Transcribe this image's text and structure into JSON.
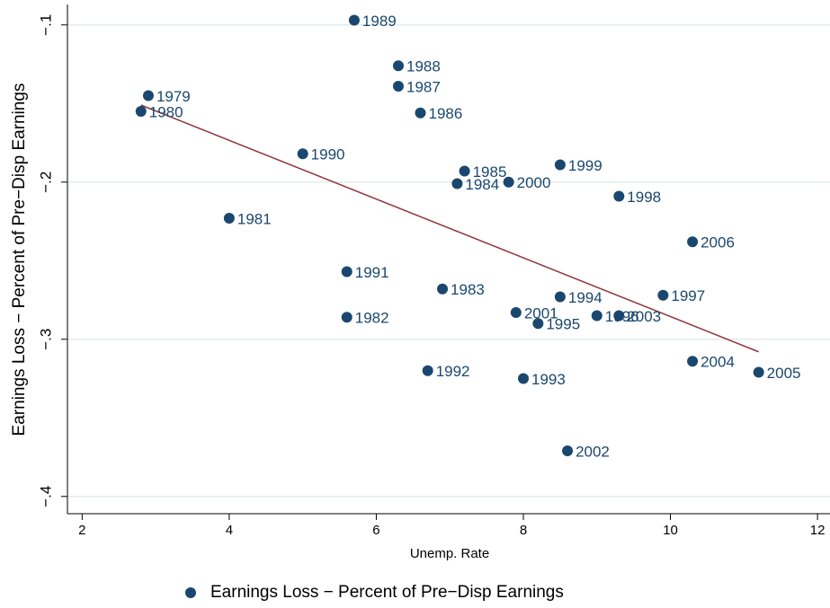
{
  "chart_data": {
    "type": "scatter",
    "x_label": "Unemp. Rate",
    "y_label": "Earnings Loss − Percent of Pre−Disp Earnings",
    "xlim": [
      1.8,
      12.17
    ],
    "ylim": [
      -0.411,
      -0.087
    ],
    "xticks": [
      2,
      4,
      6,
      8,
      10,
      12
    ],
    "yticks": [
      {
        "value": -0.1,
        "label": "−.1"
      },
      {
        "value": -0.2,
        "label": "−.2"
      },
      {
        "value": -0.3,
        "label": "−.3"
      },
      {
        "value": -0.4,
        "label": "−.4"
      }
    ],
    "grid": true,
    "series": [
      {
        "name": "Earnings Loss − Percent of Pre−Disp Earnings",
        "color": "#1a476f",
        "labels": [
          "1989",
          "1988",
          "1987",
          "1986",
          "1979",
          "1980",
          "1990",
          "1985",
          "1984",
          "2000",
          "1999",
          "1998",
          "1981",
          "2006",
          "1991",
          "1983",
          "1994",
          "1997",
          "2001",
          "1996",
          "2003",
          "1982",
          "1995",
          "2004",
          "2005",
          "1992",
          "1993",
          "2002"
        ],
        "x": [
          5.7,
          6.3,
          6.3,
          6.6,
          2.9,
          2.8,
          5.0,
          7.2,
          7.1,
          7.8,
          8.5,
          9.3,
          4.0,
          10.3,
          5.6,
          6.9,
          8.5,
          9.9,
          7.9,
          9.0,
          9.3,
          5.6,
          8.2,
          10.3,
          11.2,
          6.7,
          8.0,
          8.6
        ],
        "values": [
          -0.097,
          -0.126,
          -0.139,
          -0.156,
          -0.145,
          -0.155,
          -0.182,
          -0.193,
          -0.201,
          -0.2,
          -0.189,
          -0.209,
          -0.223,
          -0.238,
          -0.257,
          -0.268,
          -0.273,
          -0.272,
          -0.283,
          -0.285,
          -0.285,
          -0.286,
          -0.29,
          -0.314,
          -0.321,
          -0.32,
          -0.325,
          -0.371
        ]
      }
    ],
    "fit_line": {
      "color": "#90353b",
      "x": [
        2.8,
        11.2
      ],
      "values": [
        -0.151,
        -0.308
      ]
    }
  }
}
